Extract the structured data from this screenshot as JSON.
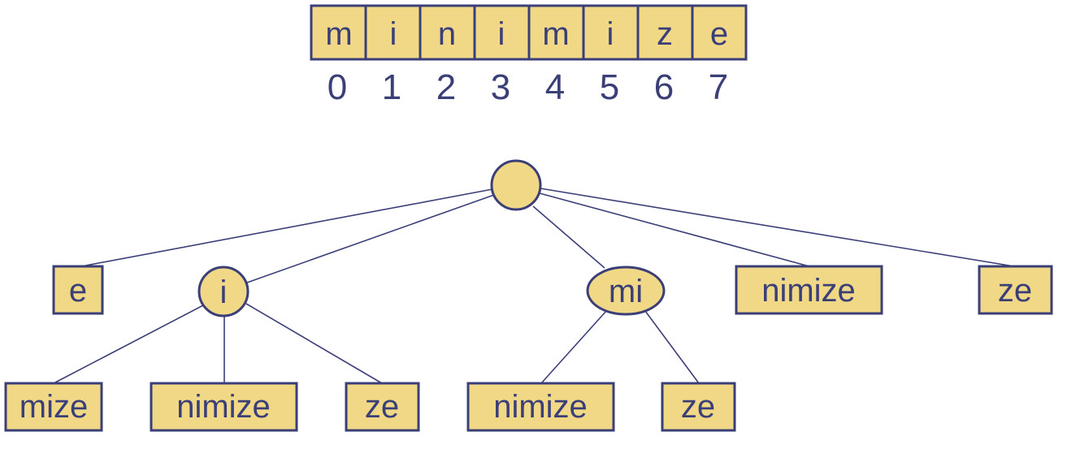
{
  "string": {
    "chars": [
      "m",
      "i",
      "n",
      "i",
      "m",
      "i",
      "z",
      "e"
    ],
    "indices": [
      "0",
      "1",
      "2",
      "3",
      "4",
      "5",
      "6",
      "7"
    ]
  },
  "tree": {
    "root": {
      "label": ""
    },
    "level1": [
      {
        "id": "e",
        "label": "e",
        "shape": "box"
      },
      {
        "id": "i",
        "label": "i",
        "shape": "circle"
      },
      {
        "id": "mi",
        "label": "mi",
        "shape": "ellipse"
      },
      {
        "id": "nimize",
        "label": "nimize",
        "shape": "box"
      },
      {
        "id": "ze",
        "label": "ze",
        "shape": "box"
      }
    ],
    "level2": [
      {
        "parent": "i",
        "label": "mize",
        "shape": "box"
      },
      {
        "parent": "i",
        "label": "nimize",
        "shape": "box"
      },
      {
        "parent": "i",
        "label": "ze",
        "shape": "box"
      },
      {
        "parent": "mi",
        "label": "nimize",
        "shape": "box"
      },
      {
        "parent": "mi",
        "label": "ze",
        "shape": "box"
      }
    ]
  },
  "colors": {
    "fill": "#f0d887",
    "stroke": "#3b3f77",
    "text": "#3b3f77"
  }
}
